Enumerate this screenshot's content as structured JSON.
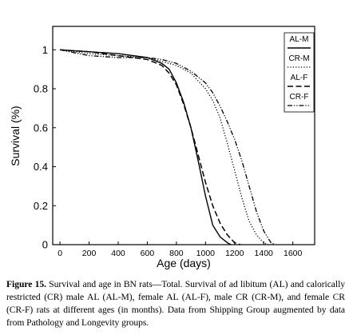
{
  "chart_data": {
    "type": "line",
    "xlabel": "Age (days)",
    "ylabel": "Survival (%)",
    "xlim": [
      -50,
      1750
    ],
    "ylim": [
      0,
      1.12
    ],
    "xticks": [
      0,
      200,
      400,
      600,
      800,
      1000,
      1200,
      1400,
      1600
    ],
    "yticks": [
      0,
      0.2,
      0.4,
      0.6,
      0.8,
      1
    ],
    "ytick_labels": [
      "0",
      "0.2",
      "0.4",
      "0.6",
      "0.8",
      "1"
    ],
    "grid": false,
    "legend_position": "top-right",
    "series": [
      {
        "name": "AL-M",
        "line_style": "solid",
        "color": "#000000",
        "x": [
          0,
          200,
          400,
          600,
          700,
          750,
          800,
          850,
          900,
          950,
          1000,
          1050,
          1100,
          1150,
          1175
        ],
        "y": [
          1.0,
          0.99,
          0.98,
          0.96,
          0.93,
          0.9,
          0.83,
          0.73,
          0.6,
          0.43,
          0.25,
          0.1,
          0.04,
          0.01,
          0.0
        ]
      },
      {
        "name": "CR-M",
        "line_style": "dotted",
        "color": "#000000",
        "x": [
          0,
          200,
          400,
          600,
          700,
          800,
          900,
          1000,
          1050,
          1100,
          1150,
          1200,
          1250,
          1300,
          1350,
          1400,
          1430
        ],
        "y": [
          1.0,
          0.98,
          0.97,
          0.96,
          0.94,
          0.92,
          0.88,
          0.8,
          0.74,
          0.65,
          0.52,
          0.38,
          0.24,
          0.12,
          0.05,
          0.01,
          0.0
        ]
      },
      {
        "name": "AL-F",
        "line_style": "dashed",
        "color": "#000000",
        "x": [
          0,
          200,
          400,
          600,
          700,
          750,
          800,
          850,
          900,
          950,
          1000,
          1050,
          1100,
          1150,
          1200,
          1240
        ],
        "y": [
          1.0,
          0.99,
          0.97,
          0.95,
          0.92,
          0.88,
          0.82,
          0.72,
          0.6,
          0.46,
          0.32,
          0.2,
          0.11,
          0.05,
          0.01,
          0.0
        ]
      },
      {
        "name": "CR-F",
        "line_style": "dash-dot-dot",
        "color": "#000000",
        "x": [
          0,
          200,
          400,
          600,
          700,
          800,
          900,
          1000,
          1050,
          1100,
          1150,
          1200,
          1250,
          1300,
          1350,
          1400,
          1450,
          1480
        ],
        "y": [
          1.0,
          0.97,
          0.96,
          0.96,
          0.95,
          0.93,
          0.89,
          0.83,
          0.78,
          0.71,
          0.63,
          0.54,
          0.43,
          0.3,
          0.17,
          0.07,
          0.01,
          0.0
        ]
      }
    ]
  },
  "caption": {
    "label": "Figure 15.",
    "text": " Survival and age in BN rats—Total. Survival of ad libitum (AL) and calorically restricted (CR) male AL (AL-M), female AL (AL-F), male CR (CR-M), and female CR (CR-F) rats at different ages (in months). Data from Shipping Group augmented by data from Pathology and Longevity groups."
  }
}
